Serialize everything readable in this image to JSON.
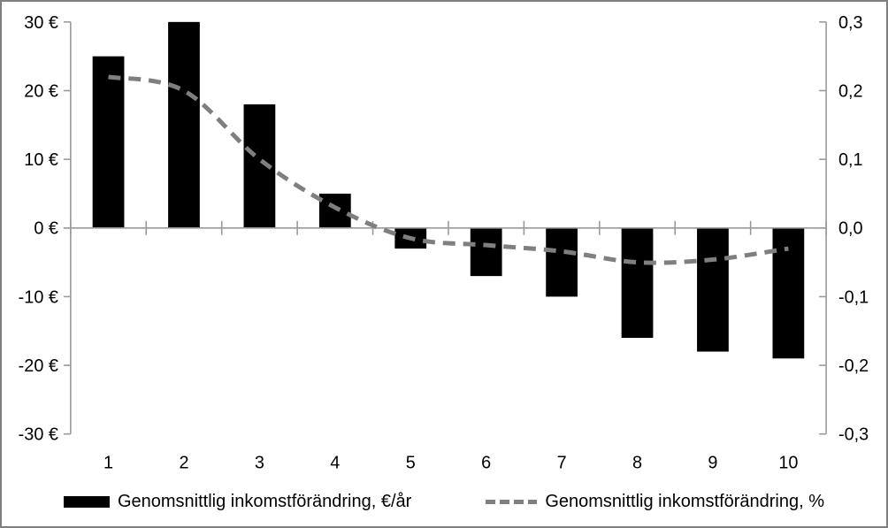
{
  "chart_data": {
    "type": "bar+line",
    "title": "",
    "categories": [
      "1",
      "2",
      "3",
      "4",
      "5",
      "6",
      "7",
      "8",
      "9",
      "10"
    ],
    "series": [
      {
        "name": "Genomsnittlig inkomstförändring, €/år",
        "type": "bar",
        "axis": "left",
        "color": "#000000",
        "values": [
          25,
          30,
          18,
          5,
          -3,
          -7,
          -10,
          -16,
          -18,
          -19
        ]
      },
      {
        "name": "Genomsnittlig inkomstförändring, %",
        "type": "line",
        "axis": "right",
        "color": "#7f7f7f",
        "dashed": true,
        "smooth": true,
        "values": [
          0.22,
          0.2,
          0.1,
          0.03,
          -0.015,
          -0.025,
          -0.034,
          -0.05,
          -0.046,
          -0.03
        ]
      }
    ],
    "left_axis": {
      "min": -30,
      "max": 30,
      "tick_labels": [
        "30 €",
        "20 €",
        "10 €",
        "0 €",
        "-10 €",
        "-20 €",
        "-30 €"
      ]
    },
    "right_axis": {
      "min": -0.3,
      "max": 0.3,
      "tick_labels": [
        "0,3",
        "0,2",
        "0,1",
        "0,0",
        "-0,1",
        "-0,2",
        "-0,3"
      ]
    },
    "grid": false,
    "legend_position": "bottom",
    "axis_color": "#9a9a9a",
    "text_color": "#000000"
  },
  "legend": {
    "bar_label": "Genomsnittlig inkomstförändring, €/år",
    "line_label": "Genomsnittlig inkomstförändring, %"
  }
}
